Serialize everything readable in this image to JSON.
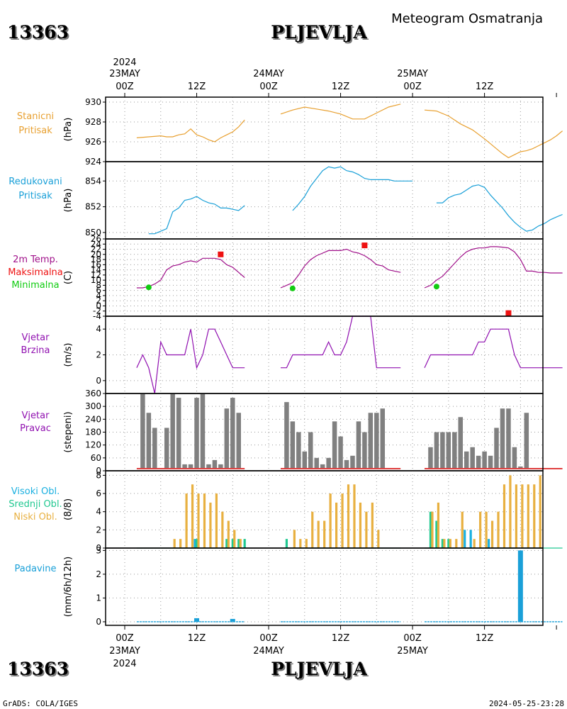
{
  "header": {
    "station_id": "13363",
    "station_name": "PLJEVLJA",
    "product": "Meteogram Osmatranja"
  },
  "footer": {
    "station_id": "13363",
    "station_name": "PLJEVLJA",
    "credit": "GrADS: COLA/IGES",
    "timestamp": "2024-05-25-23:28"
  },
  "time_axis": {
    "year": "2024",
    "days": [
      "23MAY",
      "24MAY",
      "25MAY"
    ],
    "hours": [
      "00Z",
      "12Z",
      "00Z",
      "12Z",
      "00Z",
      "12Z"
    ],
    "hour_offsets": [
      0,
      12,
      24,
      36,
      48,
      60
    ]
  },
  "colors": {
    "pressure": "#e8a030",
    "reduced": "#1aa0d8",
    "temperature": "#a0108a",
    "tmax": "#ee1111",
    "tmin": "#11cc11",
    "wind": "#9010b0",
    "direction_bar": "#808080",
    "high_cloud": "#1ab0e0",
    "mid_cloud": "#20c890",
    "low_cloud": "#e8b040",
    "precip": "#1aa0d8"
  },
  "chart_data": [
    {
      "type": "line",
      "name": "pressure",
      "labels": [
        "Stanicni",
        "Pritisak"
      ],
      "ylabel": "(hPa)",
      "ylim": [
        924,
        930.5
      ],
      "yticks": [
        924,
        926,
        928,
        930
      ],
      "segments": [
        {
          "x": [
            2,
            4,
            6,
            7,
            8,
            9,
            10,
            11,
            12,
            13,
            14,
            15,
            16,
            17,
            18,
            19,
            20
          ],
          "y": [
            926.4,
            926.5,
            926.6,
            926.5,
            926.5,
            926.7,
            926.8,
            927.3,
            926.7,
            926.5,
            926.2,
            926.0,
            926.4,
            926.7,
            927.0,
            927.5,
            928.2
          ]
        },
        {
          "x": [
            26,
            28,
            30,
            32,
            34,
            36,
            38,
            40,
            42,
            44,
            46
          ],
          "y": [
            928.8,
            929.2,
            929.5,
            929.3,
            929.1,
            928.8,
            928.3,
            928.3,
            928.9,
            929.5,
            929.8
          ]
        },
        {
          "x": [
            50,
            52,
            54,
            56,
            58,
            60,
            61,
            62,
            63,
            64,
            65,
            66,
            67,
            68,
            69,
            70,
            71,
            72,
            73
          ],
          "y": [
            929.2,
            929.1,
            928.6,
            927.8,
            927.2,
            926.3,
            925.8,
            925.3,
            924.8,
            924.4,
            924.7,
            925.0,
            925.1,
            925.3,
            925.6,
            925.9,
            926.2,
            926.6,
            927.1
          ]
        }
      ]
    },
    {
      "type": "line",
      "name": "reduced_pressure",
      "labels": [
        "Redukovani",
        "Pritisak"
      ],
      "ylabel": "(hPa)",
      "ylim": [
        849.5,
        855.5
      ],
      "yticks": [
        850,
        852,
        854
      ],
      "segments": [
        {
          "x": [
            4,
            5,
            6,
            7,
            8,
            9,
            10,
            11,
            12,
            13,
            14,
            15,
            16,
            17,
            18,
            19,
            20
          ],
          "y": [
            849.9,
            849.9,
            850.1,
            850.3,
            851.6,
            851.9,
            852.5,
            852.6,
            852.8,
            852.5,
            852.3,
            852.2,
            851.9,
            851.9,
            851.8,
            851.7,
            852.1
          ]
        },
        {
          "x": [
            28,
            29,
            30,
            31,
            32,
            33,
            34,
            35,
            36,
            37,
            38,
            39,
            40,
            41,
            42,
            43,
            44,
            45,
            46,
            47,
            48
          ],
          "y": [
            851.7,
            852.2,
            852.8,
            853.6,
            854.2,
            854.8,
            855.1,
            855.0,
            855.1,
            854.8,
            854.7,
            854.5,
            854.2,
            854.1,
            854.1,
            854.1,
            854.1,
            854.0,
            854.0,
            854.0,
            854.0
          ]
        },
        {
          "x": [
            52,
            53,
            54,
            55,
            56,
            57,
            58,
            59,
            60,
            61,
            62,
            63,
            64,
            65,
            66,
            67,
            68,
            69,
            70,
            71,
            72,
            73
          ],
          "y": [
            852.3,
            852.3,
            852.7,
            852.9,
            853.0,
            853.3,
            853.6,
            853.7,
            853.5,
            852.9,
            852.4,
            851.9,
            851.3,
            850.8,
            850.4,
            850.1,
            850.2,
            850.5,
            850.7,
            851.0,
            851.2,
            851.4
          ]
        }
      ]
    },
    {
      "type": "line",
      "name": "temperature",
      "labels": [
        "2m Temp.",
        "Maksimalna",
        "Minimalna"
      ],
      "ylabel": "(C)",
      "ylim": [
        -4,
        26
      ],
      "yticks": [
        -4,
        -2,
        0,
        2,
        4,
        6,
        8,
        10,
        12,
        14,
        16,
        18,
        20,
        22,
        24,
        26
      ],
      "segments": [
        {
          "x": [
            2,
            3,
            4,
            5,
            6,
            7,
            8,
            9,
            10,
            11,
            12,
            13,
            14,
            15,
            16,
            17,
            18,
            19,
            20
          ],
          "y": [
            7,
            7,
            7.5,
            8.5,
            10,
            14,
            15.5,
            16,
            17,
            17.5,
            17,
            18.5,
            18.5,
            18.5,
            18,
            16,
            15,
            13,
            11
          ]
        },
        {
          "x": [
            26,
            27,
            28,
            29,
            30,
            31,
            32,
            33,
            34,
            35,
            36,
            37,
            38,
            39,
            40,
            41,
            42,
            43,
            44,
            45,
            46
          ],
          "y": [
            7,
            8,
            9,
            12,
            15.5,
            18,
            19.5,
            20.5,
            21.5,
            21.5,
            21.5,
            22,
            21,
            20.5,
            19.5,
            18,
            16,
            15.5,
            14,
            13.5,
            13
          ]
        },
        {
          "x": [
            50,
            51,
            52,
            53,
            54,
            55,
            56,
            57,
            58,
            59,
            60,
            61,
            62,
            63,
            64,
            65,
            66,
            67,
            68,
            69,
            70,
            71,
            72,
            73
          ],
          "y": [
            7,
            8,
            10,
            11.5,
            14,
            16.5,
            19,
            21,
            22,
            22.5,
            22.5,
            23,
            23,
            22.8,
            22.5,
            21,
            18,
            13.5,
            13.5,
            13,
            13,
            12.8,
            12.8,
            12.8
          ]
        }
      ],
      "tmax": [
        {
          "x": 16,
          "y": 20
        },
        {
          "x": 40,
          "y": 23.5
        },
        {
          "x": 64,
          "y": -2.8
        }
      ],
      "tmin": [
        {
          "x": 4,
          "y": 7.2
        },
        {
          "x": 28,
          "y": 6.8
        },
        {
          "x": 52,
          "y": 7.5
        }
      ]
    },
    {
      "type": "line",
      "name": "wind_speed",
      "labels": [
        "Vjetar",
        "Brzina"
      ],
      "ylabel": "(m/s)",
      "ylim": [
        -1,
        5
      ],
      "yticks": [
        0,
        2,
        4
      ],
      "segments": [
        {
          "x": [
            2,
            3,
            4,
            5,
            6,
            7,
            8,
            9,
            10,
            11,
            12,
            13,
            14,
            15,
            16,
            17,
            18,
            19,
            20
          ],
          "y": [
            1,
            2,
            1,
            -1,
            3,
            2,
            2,
            2,
            2,
            4,
            1,
            2,
            4,
            4,
            3,
            2,
            1,
            1,
            1
          ]
        },
        {
          "x": [
            26,
            27,
            28,
            29,
            30,
            31,
            32,
            33,
            34,
            35,
            36,
            37,
            38,
            39,
            40,
            41,
            42,
            43,
            44,
            45,
            46
          ],
          "y": [
            1,
            1,
            2,
            2,
            2,
            2,
            2,
            2,
            3,
            2,
            2,
            3,
            5,
            5,
            5,
            5,
            1,
            1,
            1,
            1,
            1
          ]
        },
        {
          "x": [
            50,
            51,
            52,
            53,
            54,
            55,
            56,
            57,
            58,
            59,
            60,
            61,
            62,
            63,
            64,
            65,
            66,
            67,
            68,
            69,
            70,
            71,
            72,
            73
          ],
          "y": [
            1,
            2,
            2,
            2,
            2,
            2,
            2,
            2,
            2,
            3,
            3,
            4,
            4,
            4,
            4,
            2,
            1,
            1,
            1,
            1,
            1,
            1,
            1,
            1
          ]
        }
      ]
    },
    {
      "type": "bar",
      "name": "wind_direction",
      "labels": [
        "Vjetar",
        "Pravac"
      ],
      "ylabel": "(stepeni)",
      "ylim": [
        0,
        360
      ],
      "yticks": [
        0,
        60,
        120,
        180,
        240,
        300,
        360
      ],
      "x": [
        3,
        4,
        5,
        6,
        7,
        8,
        9,
        10,
        11,
        12,
        13,
        14,
        15,
        16,
        17,
        18,
        19,
        20,
        27,
        28,
        29,
        30,
        31,
        32,
        33,
        34,
        35,
        36,
        37,
        38,
        39,
        40,
        41,
        42,
        43,
        44,
        51,
        52,
        53,
        54,
        55,
        56,
        57,
        58,
        59,
        60,
        61,
        62,
        63,
        64,
        65,
        66,
        67,
        68
      ],
      "values": [
        360,
        270,
        200,
        0,
        200,
        360,
        340,
        30,
        30,
        340,
        360,
        30,
        50,
        30,
        290,
        340,
        270,
        0,
        320,
        230,
        180,
        90,
        180,
        60,
        30,
        60,
        230,
        160,
        50,
        70,
        230,
        180,
        270,
        270,
        290,
        0,
        110,
        180,
        180,
        180,
        180,
        250,
        90,
        110,
        70,
        90,
        70,
        200,
        290,
        290,
        110,
        20,
        270,
        0
      ]
    },
    {
      "type": "bar",
      "name": "clouds",
      "labels": [
        "Visoki Obl.",
        "Srednji Obl.",
        "Niski Obl."
      ],
      "ylabel": "(8/8)",
      "ylim": [
        0,
        8.5
      ],
      "yticks": [
        0,
        2,
        4,
        6,
        8
      ],
      "x": [
        8,
        9,
        10,
        11,
        12,
        13,
        14,
        15,
        16,
        17,
        18,
        19,
        20,
        27,
        28,
        29,
        30,
        31,
        32,
        33,
        34,
        35,
        36,
        37,
        38,
        39,
        40,
        41,
        42,
        43,
        44,
        51,
        52,
        53,
        54,
        55,
        56,
        57,
        58,
        59,
        60,
        61,
        62,
        63,
        64,
        65,
        66,
        67,
        68,
        69
      ],
      "series": [
        {
          "name": "Visoki Obl.",
          "values": [
            0,
            0,
            0,
            0,
            1,
            0,
            0,
            0,
            0,
            0,
            0,
            0,
            0,
            0,
            0,
            0,
            0,
            0,
            0,
            0,
            0,
            0,
            0,
            0,
            0,
            0,
            0,
            0,
            0,
            0,
            0,
            0,
            0,
            0,
            0,
            0,
            0,
            2,
            2,
            0,
            0,
            1,
            0,
            0,
            0,
            0,
            0,
            0,
            0,
            0
          ]
        },
        {
          "name": "Srednji Obl.",
          "values": [
            0,
            0,
            0,
            0,
            1,
            0,
            0,
            0,
            0,
            1,
            1,
            1,
            1,
            1,
            0,
            0,
            0,
            0,
            0,
            0,
            0,
            0,
            0,
            0,
            0,
            0,
            0,
            0,
            0,
            0,
            0,
            4,
            3,
            1,
            1,
            0,
            0,
            0,
            0,
            0,
            0,
            0,
            0,
            0,
            0,
            0,
            0,
            0,
            0,
            0
          ]
        },
        {
          "name": "Niski Obl.",
          "values": [
            1,
            1,
            6,
            7,
            6,
            6,
            5,
            6,
            4,
            3,
            2,
            1,
            0,
            0,
            2,
            1,
            1,
            4,
            3,
            3,
            6,
            5,
            6,
            7,
            7,
            5,
            4,
            5,
            2,
            0,
            0,
            4,
            5,
            1,
            1,
            1,
            4,
            0,
            1,
            4,
            4,
            3,
            4,
            7,
            8,
            7,
            7,
            7,
            7,
            8
          ]
        }
      ]
    },
    {
      "type": "bar",
      "name": "precipitation",
      "labels": [
        "Padavine"
      ],
      "ylabel": "(mm/6h/12h)",
      "ylim": [
        -0.15,
        3.1
      ],
      "yticks": [
        0,
        1,
        2,
        3
      ],
      "baseline_segments": [
        [
          2,
          20
        ],
        [
          26,
          46
        ],
        [
          50,
          73
        ]
      ],
      "bars": [
        {
          "x": 12,
          "y": 0.15
        },
        {
          "x": 18,
          "y": 0.12
        },
        {
          "x": 66,
          "y": 3.0
        }
      ]
    }
  ]
}
